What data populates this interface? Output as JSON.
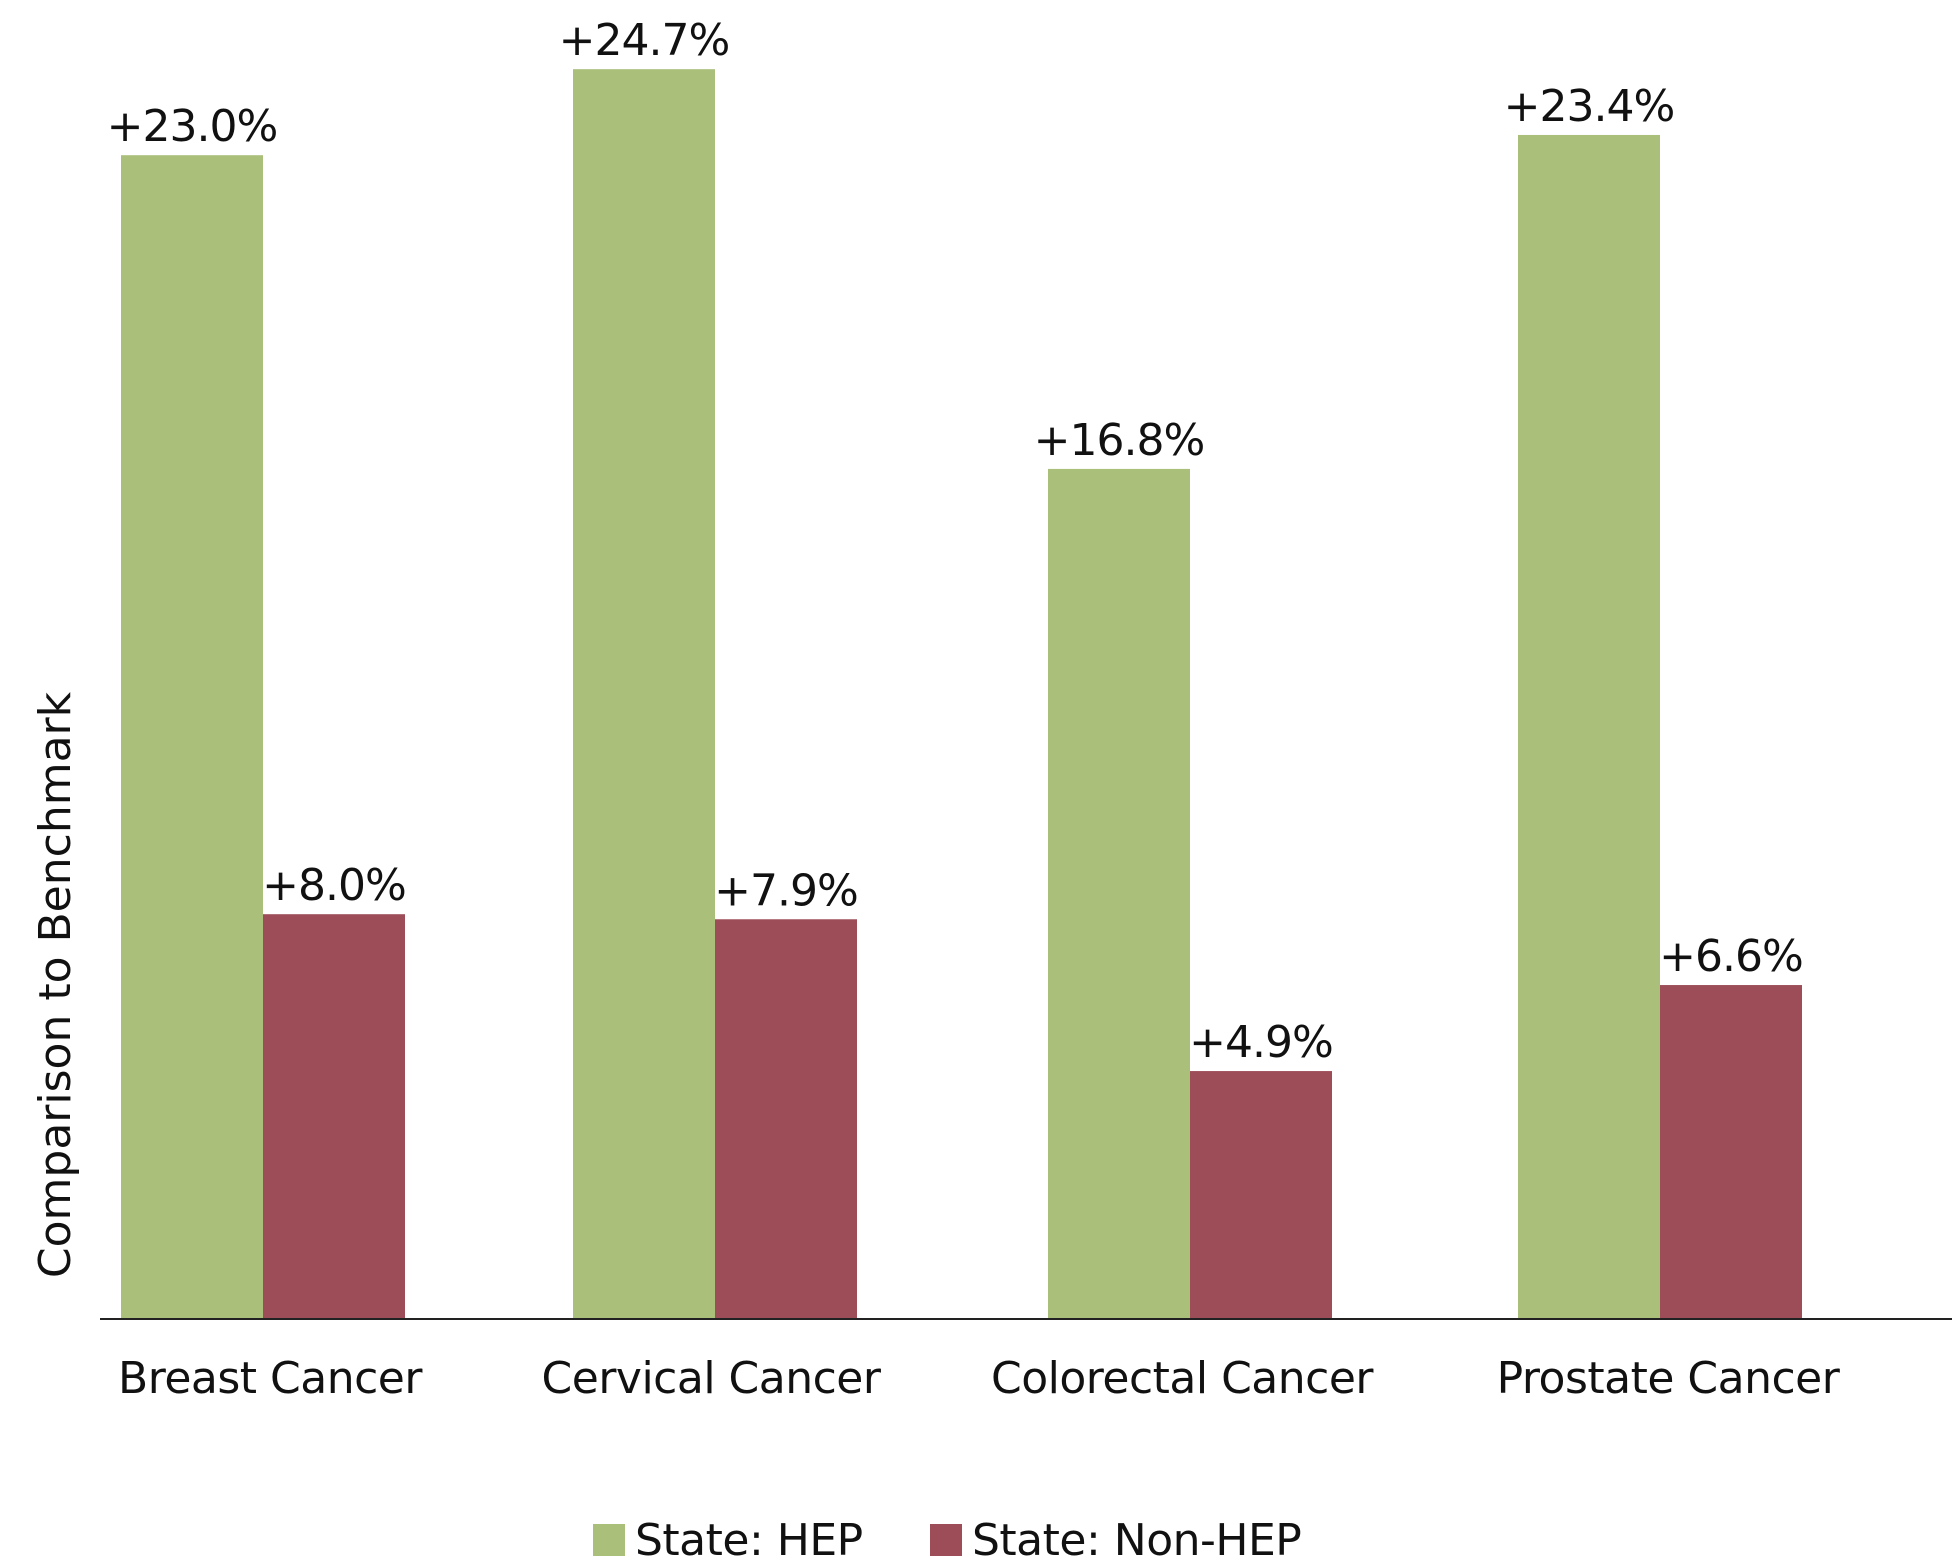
{
  "chart_data": {
    "type": "bar",
    "title": "",
    "xlabel": "",
    "ylabel": "Comparison to Benchmark",
    "categories": [
      "Breast Cancer",
      "Cervical Cancer",
      "Colorectal Cancer",
      "Prostate Cancer"
    ],
    "series": [
      {
        "name": "State: HEP",
        "color": "#a9bf7a",
        "values": [
          23.0,
          24.7,
          16.8,
          23.4
        ],
        "labels": [
          "+23.0%",
          "+24.7%",
          "+16.8%",
          "+23.4%"
        ]
      },
      {
        "name": "State: Non-HEP",
        "color": "#9c4d58",
        "values": [
          8.0,
          7.9,
          4.9,
          6.6
        ],
        "labels": [
          "+8.0%",
          "+7.9%",
          "+4.9%",
          "+6.6%"
        ]
      }
    ],
    "ylim": [
      0,
      25
    ],
    "grid": false,
    "legend_position": "bottom-center"
  }
}
